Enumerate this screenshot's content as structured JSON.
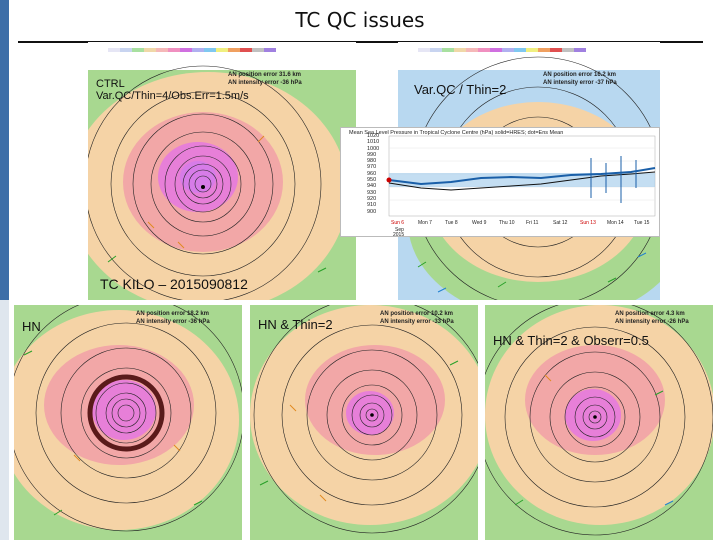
{
  "slide": {
    "title": "TC QC issues",
    "case_label": "TC KILO – 2015090812"
  },
  "colors": {
    "accent_bar": "#3d6ea8",
    "circle_highlight": "#5a1a1a",
    "inset_line": "#1a5fa8"
  },
  "panels": {
    "ctrl": {
      "label_line1": "CTRL",
      "label_line2": "Var.QC/Thin=4/Obs.Err=1.5m/s",
      "stats_line1": "AN position error 31.6 km",
      "stats_line2": "AN intensity error -36 hPa"
    },
    "varqc": {
      "label": "Var.QC / Thin=2",
      "stats_line1": "AN position error 16.2 km",
      "stats_line2": "AN intensity error -37 hPa"
    },
    "hn": {
      "label": "HN",
      "stats_line1": "AN position error 18.2 km",
      "stats_line2": "AN intensity error -36 hPa"
    },
    "hn_thin": {
      "label": "HN & Thin=2",
      "stats_line1": "AN position error 10.2 km",
      "stats_line2": "AN intensity error -33 hPa"
    },
    "hn_thin_obserr": {
      "label": "HN & Thin=2 & Obserr=0.5",
      "stats_line1": "AN position error 4.3 km",
      "stats_line2": "AN intensity error -26 hPa"
    }
  },
  "inset": {
    "title": "Mean Sea Level Pressure in Tropical Cyclone Centre (hPa) solid=HRES; dot=Ens Mean",
    "y_ticks": [
      "1020",
      "1010",
      "1000",
      "990",
      "980",
      "970",
      "960",
      "950",
      "940",
      "930",
      "920",
      "910",
      "900"
    ],
    "x_ticks": [
      "Sun 6",
      "Mon 7",
      "Tue 8",
      "Wed 9",
      "Thu 10",
      "Fri 11",
      "Sat 12",
      "Sun 13",
      "Mon 14",
      "Tue 15"
    ],
    "x_sub": [
      "Sep",
      "2015"
    ]
  }
}
